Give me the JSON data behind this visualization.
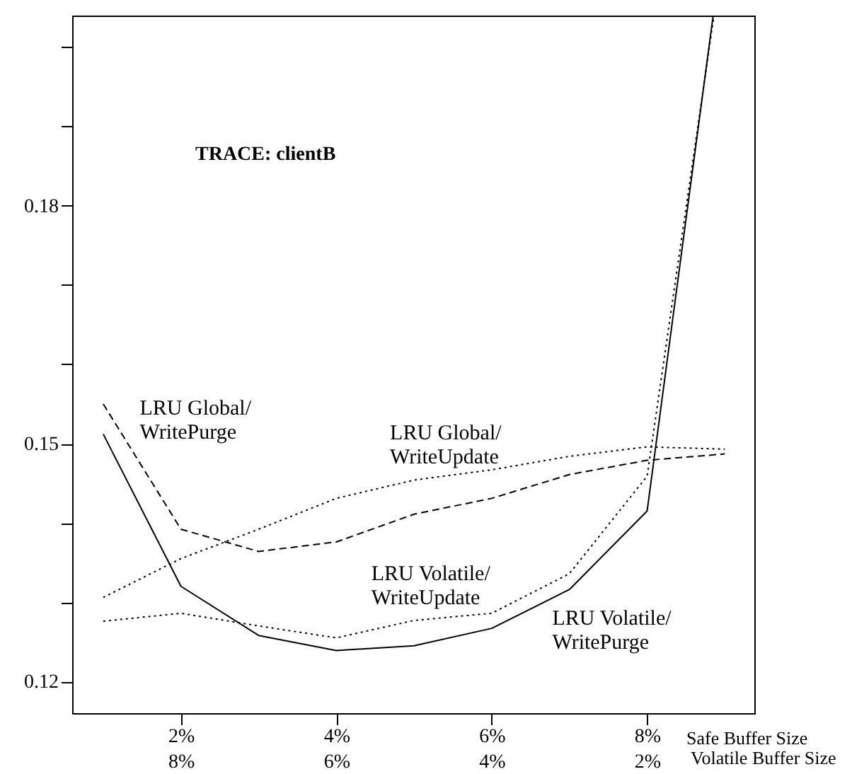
{
  "chart_data": {
    "type": "line",
    "annotations": [
      "TRACE: clientB"
    ],
    "xlabel": "Safe Buffer Size",
    "x2label": "Volatile Buffer Size",
    "xlim": [
      0.6,
      9.38
    ],
    "xticks": [
      {
        "value": 2,
        "label": "2%"
      },
      {
        "value": 4,
        "label": "4%"
      },
      {
        "value": 6,
        "label": "6%"
      },
      {
        "value": 8,
        "label": "8%"
      }
    ],
    "x2lim": [
      9.4,
      0.62
    ],
    "x2ticks": [
      {
        "value": 8,
        "label": "8%"
      },
      {
        "value": 6,
        "label": "6%"
      },
      {
        "value": 4,
        "label": "4%"
      },
      {
        "value": 2,
        "label": "2%"
      }
    ],
    "ylim": [
      0.116,
      0.204
    ],
    "yticks": [
      {
        "value": 0.12,
        "label": "0.12"
      },
      {
        "value": 0.13,
        "label": null
      },
      {
        "value": 0.14,
        "label": null
      },
      {
        "value": 0.15,
        "label": "0.15"
      },
      {
        "value": 0.16,
        "label": null
      },
      {
        "value": 0.17,
        "label": null
      },
      {
        "value": 0.18,
        "label": "0.18"
      },
      {
        "value": 0.19,
        "label": null
      },
      {
        "value": 0.2,
        "label": null
      }
    ],
    "grid": false,
    "marker": "none",
    "series": [
      {
        "name": "LRU Global/WritePurge",
        "color": "#000000",
        "line_style": "dashed",
        "x": [
          1,
          2,
          3,
          4,
          5,
          6,
          7,
          8,
          9
        ],
        "values": [
          0.155,
          0.1392,
          0.1364,
          0.1376,
          0.1411,
          0.1431,
          0.1461,
          0.1479,
          0.1487
        ]
      },
      {
        "name": "LRU Global/WriteUpdate",
        "color": "#000000",
        "line_style": "dotted",
        "x": [
          1,
          2,
          3,
          4,
          5,
          6,
          7,
          8,
          9
        ],
        "values": [
          0.1306,
          0.1355,
          0.1392,
          0.1431,
          0.1454,
          0.1467,
          0.1484,
          0.1496,
          0.1493
        ]
      },
      {
        "name": "LRU Volatile/WriteUpdate",
        "color": "#000000",
        "line_style": "dotted",
        "x": [
          1,
          2,
          3,
          4,
          5,
          6,
          7,
          8,
          8.86
        ],
        "values": [
          0.1276,
          0.1286,
          0.127,
          0.1255,
          0.1277,
          0.1286,
          0.1336,
          0.1459,
          0.204
        ]
      },
      {
        "name": "LRU Volatile/WritePurge",
        "color": "#000000",
        "line_style": "solid",
        "x": [
          1,
          2,
          3,
          4,
          5,
          6,
          7,
          8,
          8.85
        ],
        "values": [
          0.1512,
          0.132,
          0.1258,
          0.1239,
          0.1245,
          0.1267,
          0.1316,
          0.1415,
          0.204
        ]
      }
    ]
  }
}
